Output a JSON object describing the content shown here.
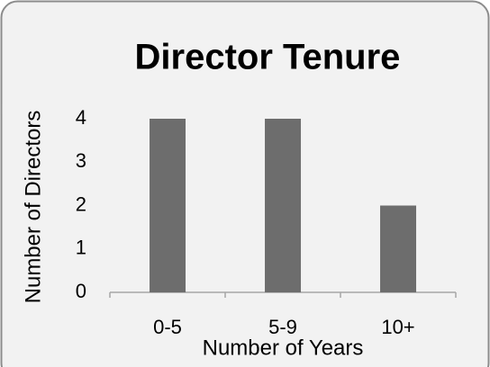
{
  "chart_data": {
    "type": "bar",
    "title": "Director Tenure",
    "x_label": "Number of Years",
    "y_label": "Number of Directors",
    "categories": [
      "0-5",
      "5-9",
      "10+"
    ],
    "values": [
      4,
      4,
      2
    ],
    "color": "#6d6d6d",
    "ylim": [
      0,
      4
    ],
    "yticks": [
      0,
      1,
      2,
      3,
      4
    ],
    "grid": false
  }
}
